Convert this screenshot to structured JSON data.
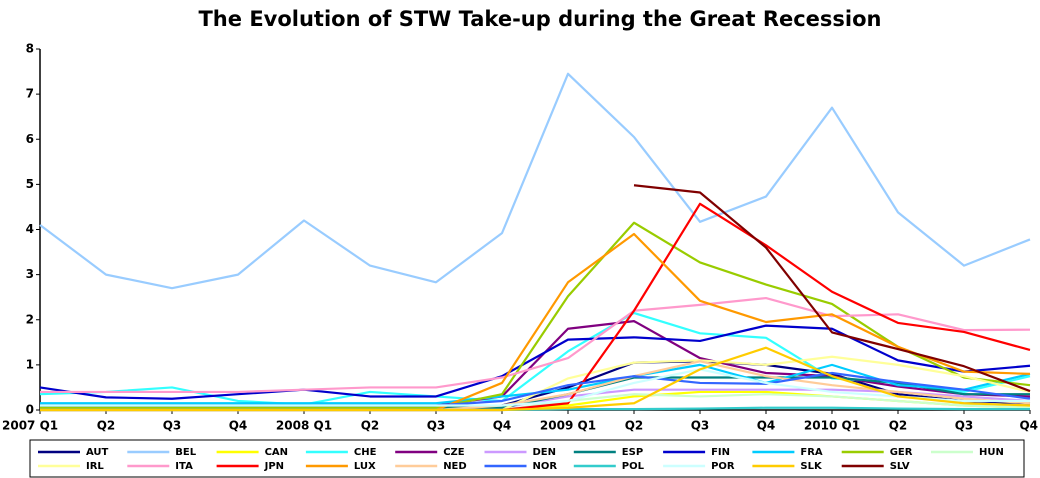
{
  "chart_data": {
    "type": "line",
    "title": "The Evolution of STW Take-up during the Great Recession",
    "categories": [
      "2007 Q1",
      "Q2",
      "Q3",
      "Q4",
      "2008 Q1",
      "Q2",
      "Q3",
      "Q4",
      "2009 Q1",
      "Q2",
      "Q3",
      "Q4",
      "2010 Q1",
      "Q2",
      "Q3",
      "Q4"
    ],
    "ylim": [
      0,
      8
    ],
    "yticks": [
      0,
      1,
      2,
      3,
      4,
      5,
      6,
      7,
      8
    ],
    "series": [
      {
        "name": "AUT",
        "color": "#000080",
        "values": [
          0.05,
          0.05,
          0.05,
          0.05,
          0.05,
          0.05,
          0.05,
          0.1,
          0.5,
          1.05,
          1.08,
          1.0,
          0.8,
          0.35,
          0.2,
          0.15
        ]
      },
      {
        "name": "BEL",
        "color": "#99ccff",
        "values": [
          4.1,
          3.0,
          2.7,
          3.0,
          4.2,
          3.2,
          2.83,
          3.92,
          7.45,
          6.05,
          4.17,
          4.73,
          6.7,
          4.38,
          3.2,
          3.78
        ]
      },
      {
        "name": "CAN",
        "color": "#ffff00",
        "values": [
          0.02,
          0.02,
          0.02,
          0.02,
          0.02,
          0.02,
          0.02,
          0.02,
          0.1,
          0.3,
          0.4,
          0.4,
          0.3,
          0.2,
          0.1,
          0.05
        ]
      },
      {
        "name": "CHE",
        "color": "#33ffff",
        "values": [
          0.35,
          0.4,
          0.5,
          0.2,
          0.12,
          0.4,
          0.3,
          0.2,
          1.3,
          2.15,
          1.7,
          1.6,
          0.7,
          0.6,
          0.4,
          0.75
        ]
      },
      {
        "name": "CZE",
        "color": "#800080",
        "values": [
          0.1,
          0.1,
          0.1,
          0.1,
          0.1,
          0.1,
          0.1,
          0.3,
          1.8,
          1.97,
          1.15,
          0.82,
          0.75,
          0.52,
          0.35,
          0.3
        ]
      },
      {
        "name": "DEN",
        "color": "#cc99ff",
        "values": [
          0.05,
          0.05,
          0.05,
          0.05,
          0.05,
          0.05,
          0.05,
          0.05,
          0.3,
          0.45,
          0.45,
          0.45,
          0.45,
          0.4,
          0.3,
          0.2
        ]
      },
      {
        "name": "ESP",
        "color": "#008080",
        "values": [
          0.05,
          0.05,
          0.05,
          0.05,
          0.05,
          0.05,
          0.05,
          0.05,
          0.35,
          0.72,
          0.72,
          0.72,
          0.72,
          0.6,
          0.35,
          0.35
        ]
      },
      {
        "name": "FIN",
        "color": "#0000cc",
        "values": [
          0.5,
          0.28,
          0.25,
          0.35,
          0.45,
          0.3,
          0.3,
          0.75,
          1.56,
          1.61,
          1.53,
          1.87,
          1.8,
          1.1,
          0.85,
          0.98
        ]
      },
      {
        "name": "FRA",
        "color": "#00ccff",
        "values": [
          0.15,
          0.15,
          0.15,
          0.15,
          0.15,
          0.15,
          0.15,
          0.3,
          0.45,
          0.75,
          1.0,
          0.6,
          1.0,
          0.55,
          0.45,
          0.8
        ]
      },
      {
        "name": "GER",
        "color": "#99cc00",
        "values": [
          0.05,
          0.05,
          0.05,
          0.05,
          0.05,
          0.05,
          0.05,
          0.35,
          2.52,
          4.15,
          3.27,
          2.78,
          2.35,
          1.4,
          0.72,
          0.55
        ]
      },
      {
        "name": "HUN",
        "color": "#ccffcc",
        "values": [
          0,
          0,
          0,
          0,
          0,
          0,
          0,
          0,
          0.2,
          0.35,
          0.3,
          0.35,
          0.3,
          0.2,
          0.1,
          0.05
        ]
      },
      {
        "name": "IRL",
        "color": "#ffff99",
        "values": [
          0,
          0,
          0,
          0,
          0,
          0,
          0,
          0,
          0.7,
          1.05,
          1.1,
          1.0,
          1.18,
          1.0,
          0.75,
          0.4
        ]
      },
      {
        "name": "ITA",
        "color": "#ff99cc",
        "values": [
          0.4,
          0.4,
          0.4,
          0.4,
          0.45,
          0.5,
          0.5,
          0.72,
          1.15,
          2.2,
          2.33,
          2.48,
          2.08,
          2.12,
          1.77,
          1.78
        ]
      },
      {
        "name": "JPN",
        "color": "#ff0000",
        "values": [
          0,
          0,
          0,
          0,
          0,
          0,
          0,
          0,
          0.15,
          2.2,
          4.57,
          3.65,
          2.62,
          1.93,
          1.73,
          1.33
        ]
      },
      {
        "name": "LUX",
        "color": "#ff9900",
        "values": [
          0,
          0,
          0,
          0,
          0,
          0,
          0,
          0.6,
          2.83,
          3.9,
          2.42,
          1.95,
          2.12,
          1.4,
          0.85,
          0.8
        ]
      },
      {
        "name": "NED",
        "color": "#ffcc99",
        "values": [
          0,
          0,
          0,
          0,
          0,
          0,
          0,
          0.1,
          0.35,
          0.75,
          1.08,
          0.75,
          0.55,
          0.4,
          0.25,
          0.15
        ]
      },
      {
        "name": "NOR",
        "color": "#3366ff",
        "values": [
          0.1,
          0.1,
          0.1,
          0.1,
          0.1,
          0.1,
          0.1,
          0.2,
          0.55,
          0.75,
          0.6,
          0.58,
          0.82,
          0.62,
          0.45,
          0.25
        ]
      },
      {
        "name": "POL",
        "color": "#33cccc",
        "values": [
          0,
          0,
          0,
          0,
          0,
          0,
          0,
          0,
          0.02,
          0.02,
          0.03,
          0.05,
          0.05,
          0.03,
          0.02,
          0.02
        ]
      },
      {
        "name": "POR",
        "color": "#ccffff",
        "values": [
          0.1,
          0.1,
          0.1,
          0.1,
          0.1,
          0.1,
          0.1,
          0.1,
          0.2,
          0.6,
          0.9,
          0.6,
          0.4,
          0.3,
          0.2,
          0.2
        ]
      },
      {
        "name": "SLK",
        "color": "#ffcc00",
        "values": [
          0,
          0,
          0,
          0,
          0,
          0,
          0,
          0,
          0.05,
          0.15,
          0.9,
          1.38,
          0.75,
          0.3,
          0.15,
          0.1
        ]
      },
      {
        "name": "SLV",
        "color": "#800000",
        "values": [
          null,
          null,
          null,
          null,
          null,
          null,
          null,
          null,
          null,
          4.98,
          4.82,
          3.6,
          1.72,
          1.35,
          0.97,
          0.42
        ]
      }
    ]
  }
}
